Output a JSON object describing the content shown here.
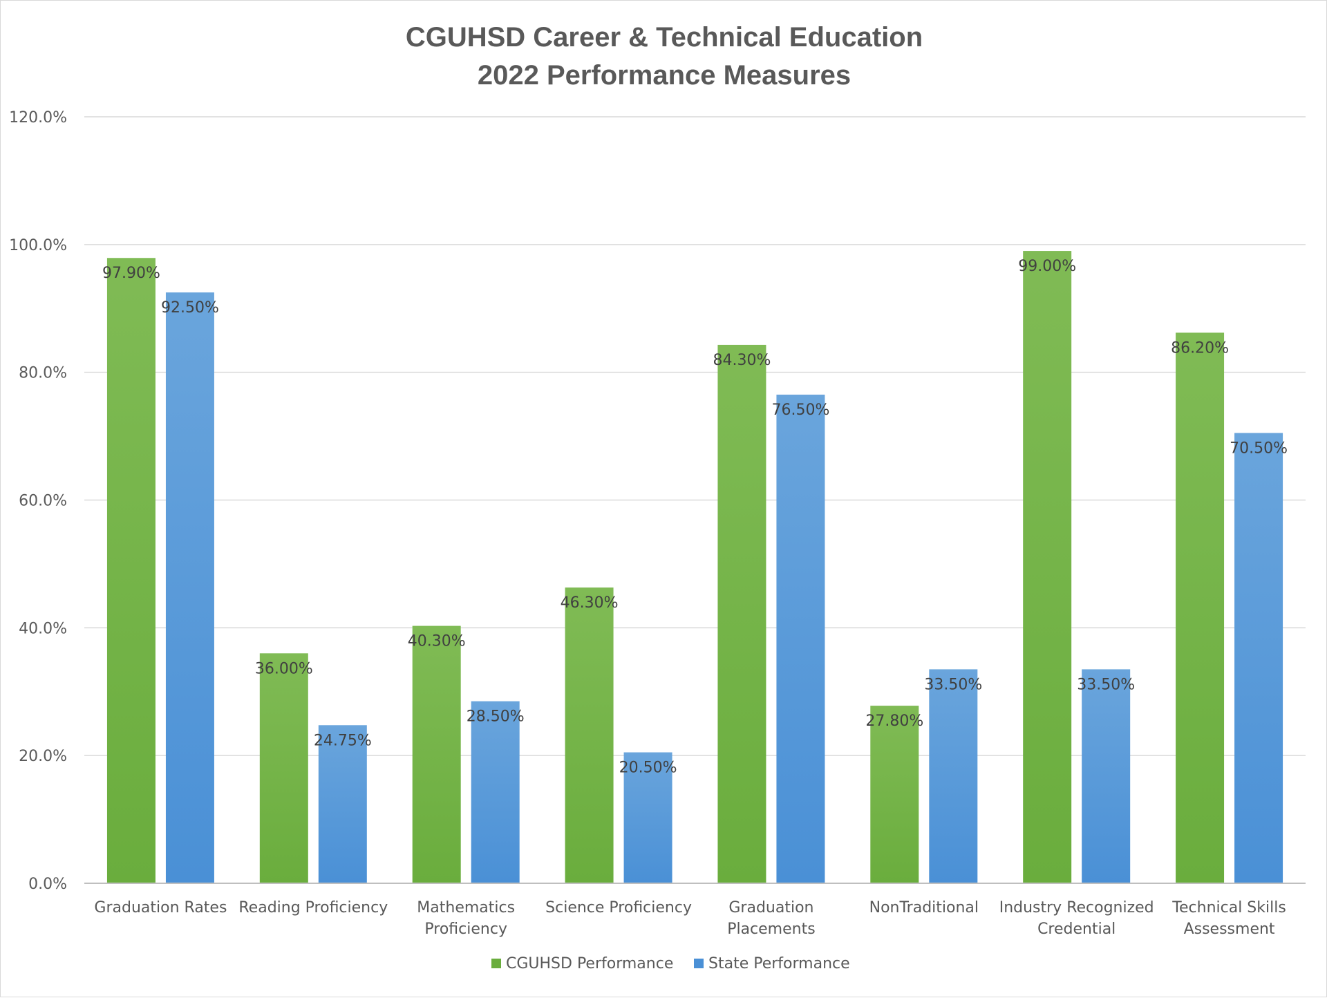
{
  "chart_data": {
    "type": "bar",
    "title_lines": [
      "CGUHSD Career & Technical Education",
      "2022 Performance Measures"
    ],
    "categories": [
      [
        "Graduation Rates"
      ],
      [
        "Reading Proficiency"
      ],
      [
        "Mathematics",
        "Proficiency"
      ],
      [
        "Science Proficiency"
      ],
      [
        "Graduation",
        "Placements"
      ],
      [
        "NonTraditional"
      ],
      [
        "Industry Recognized",
        "Credential"
      ],
      [
        "Technical Skills",
        "Assessment"
      ]
    ],
    "series": [
      {
        "name": "CGUHSD Performance",
        "color": "#6aad3d",
        "color_light": "#80bb55",
        "values": [
          97.9,
          36.0,
          40.3,
          46.3,
          84.3,
          27.8,
          99.0,
          86.2
        ],
        "labels": [
          "97.90%",
          "36.00%",
          "40.30%",
          "46.30%",
          "84.30%",
          "27.80%",
          "99.00%",
          "86.20%"
        ]
      },
      {
        "name": "State Performance",
        "color": "#4a90d6",
        "color_light": "#6aa5dc",
        "values": [
          92.5,
          24.75,
          28.5,
          20.5,
          76.5,
          33.5,
          33.5,
          70.5
        ],
        "labels": [
          "92.50%",
          "24.75%",
          "28.50%",
          "20.50%",
          "76.50%",
          "33.50%",
          "33.50%",
          "70.50%"
        ]
      }
    ],
    "ylim": [
      0,
      120
    ],
    "yticks": [
      0,
      20,
      40,
      60,
      80,
      100,
      120
    ],
    "ytick_labels": [
      "0.0%",
      "20.0%",
      "40.0%",
      "60.0%",
      "80.0%",
      "100.0%",
      "120.0%"
    ],
    "grid": true,
    "legend_position": "bottom"
  }
}
